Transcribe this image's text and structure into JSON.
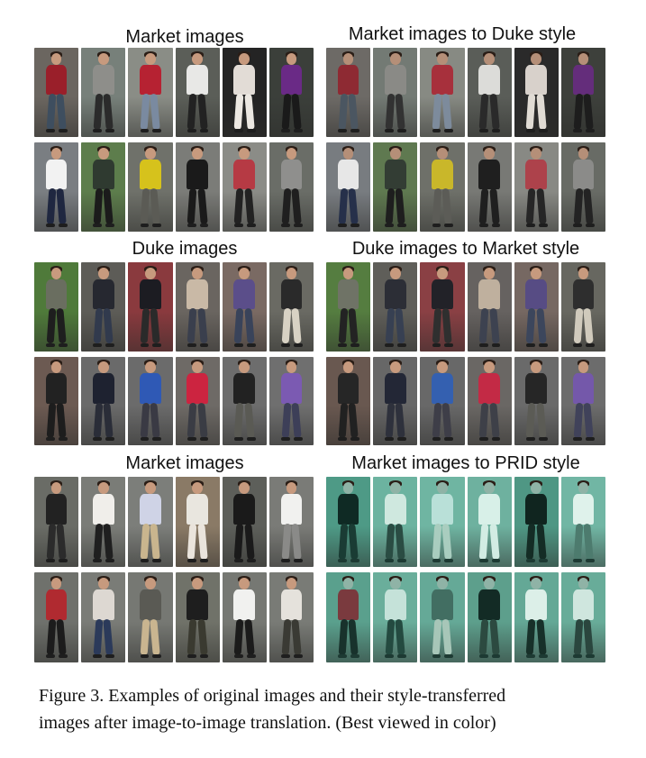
{
  "figure": {
    "panels": [
      {
        "id": "market-1",
        "title": "Market images",
        "variant": "market"
      },
      {
        "id": "market-to-duke",
        "title": "Market images to Duke style",
        "variant": "duke-style"
      },
      {
        "id": "duke",
        "title": "Duke images",
        "variant": "duke"
      },
      {
        "id": "duke-to-market",
        "title": "Duke images to Market style",
        "variant": "market-style"
      },
      {
        "id": "market-2",
        "title": "Market images",
        "variant": "market"
      },
      {
        "id": "market-to-prid",
        "title": "Market images to PRID style",
        "variant": "prid"
      }
    ],
    "caption": {
      "line1": "Figure 3. Examples of original images and their style-transferred",
      "line2": "images after image-to-image translation. (Best viewed in color)"
    }
  },
  "palettes": {
    "market-1": [
      [
        "#9a1f2a",
        "#3e4e5f",
        "#6b6660"
      ],
      [
        "#8e8e8a",
        "#2b2b2b",
        "#77807a"
      ],
      [
        "#b62232",
        "#7a8aa0",
        "#8a8d86"
      ],
      [
        "#e8e8e6",
        "#222222",
        "#5b5e58"
      ],
      [
        "#e2dcd6",
        "#ece8e2",
        "#242424"
      ],
      [
        "#6a2a86",
        "#1a1a1a",
        "#3b3f3a"
      ],
      [
        "#f2f2f2",
        "#1f2740",
        "#7a7e82"
      ],
      [
        "#2f3a30",
        "#1b1b1b",
        "#5d7d4c"
      ],
      [
        "#d6c21c",
        "#5b5b55",
        "#6f716a"
      ],
      [
        "#1a1a1a",
        "#1a1a1a",
        "#7b7c78"
      ],
      [
        "#b63a44",
        "#222222",
        "#8b8c87"
      ],
      [
        "#8f8f8d",
        "#1f1f1f",
        "#6a6d67"
      ]
    ],
    "market-to-duke": [
      [
        "#8e2a33",
        "#4b5661",
        "#6d6a66"
      ],
      [
        "#8a8a86",
        "#323232",
        "#737a74"
      ],
      [
        "#a7303c",
        "#7d8b9c",
        "#878a83"
      ],
      [
        "#dcdcd9",
        "#2a2a2a",
        "#5a5d58"
      ],
      [
        "#d8d1cb",
        "#e0dbd4",
        "#2a2a2a"
      ],
      [
        "#642d7b",
        "#1d1d1d",
        "#3d403b"
      ],
      [
        "#e7e7e7",
        "#26304a",
        "#787c80"
      ],
      [
        "#333d34",
        "#1e1e1e",
        "#5f7950"
      ],
      [
        "#c9b72a",
        "#5c5c57",
        "#6e7069"
      ],
      [
        "#1f1f1f",
        "#1f1f1f",
        "#787975"
      ],
      [
        "#ad424b",
        "#262626",
        "#888984"
      ],
      [
        "#8b8b89",
        "#232323",
        "#686b65"
      ]
    ],
    "duke": [
      [
        "#6a6e60",
        "#1e1e1e",
        "#4f7a3a"
      ],
      [
        "#262830",
        "#313a4d",
        "#5d5c57"
      ],
      [
        "#1c1c22",
        "#2a2a2a",
        "#8a3a3e"
      ],
      [
        "#c9b9a6",
        "#3a3f4d",
        "#6a6560"
      ],
      [
        "#5b4e8a",
        "#39435a",
        "#7a6a63"
      ],
      [
        "#2a2a2a",
        "#d8d2c4",
        "#6a6a63"
      ],
      [
        "#222222",
        "#1d1d1d",
        "#6c5a52"
      ],
      [
        "#1e2230",
        "#2a2d38",
        "#6a6a6a"
      ],
      [
        "#2f59b5",
        "#3a3a44",
        "#6b6b6b"
      ],
      [
        "#cc2440",
        "#3a3c44",
        "#6e6a66"
      ],
      [
        "#222222",
        "#5a5a54",
        "#6d6d6d"
      ],
      [
        "#7b5ab2",
        "#3d3f58",
        "#6f6f6f"
      ]
    ],
    "duke-to-market": [
      [
        "#6f7366",
        "#232323",
        "#557d40"
      ],
      [
        "#2c2e36",
        "#374052",
        "#5f5e59"
      ],
      [
        "#222228",
        "#2f2f2f",
        "#8a4044"
      ],
      [
        "#bfb09e",
        "#3d4250",
        "#666260"
      ],
      [
        "#574c84",
        "#3c465c",
        "#766862"
      ],
      [
        "#2e2e2e",
        "#d0cabc",
        "#676760"
      ],
      [
        "#262626",
        "#212121",
        "#695850"
      ],
      [
        "#232736",
        "#2e313c",
        "#676767"
      ],
      [
        "#3460b0",
        "#3e3e48",
        "#686868"
      ],
      [
        "#c32a45",
        "#3e4048",
        "#6a6764"
      ],
      [
        "#262626",
        "#5b5b55",
        "#6a6a6a"
      ],
      [
        "#7458aa",
        "#40425a",
        "#6c6c6c"
      ]
    ],
    "market-2": [
      [
        "#222222",
        "#2b2b2b",
        "#6a6c66"
      ],
      [
        "#f0eeea",
        "#1f1f1f",
        "#7a7c77"
      ],
      [
        "#cfd3e6",
        "#c9b58e",
        "#7c7e7a"
      ],
      [
        "#e9e6df",
        "#eae4dc",
        "#8a7a66"
      ],
      [
        "#1a1a1a",
        "#1a1a1a",
        "#5d5f5a"
      ],
      [
        "#f1f1ef",
        "#8a8a88",
        "#7a7b77"
      ],
      [
        "#b02a30",
        "#1c1c1c",
        "#6f716c"
      ],
      [
        "#ddd8d2",
        "#2b3a5a",
        "#7a7c77"
      ],
      [
        "#5a5a54",
        "#c9b590",
        "#767873"
      ],
      [
        "#1e1e1e",
        "#3a3a30",
        "#707269"
      ],
      [
        "#f1f1ef",
        "#1b1b1b",
        "#767873"
      ],
      [
        "#e5e2dc",
        "#3a3a34",
        "#797b76"
      ]
    ],
    "market-to-prid": [
      [
        "#0f2a24",
        "#1a3c34",
        "#4e9a86"
      ],
      [
        "#cfe8df",
        "#2a4c43",
        "#6cb3a0"
      ],
      [
        "#b9e0d8",
        "#a9cdbf",
        "#6fb5a2"
      ],
      [
        "#d8f0e8",
        "#d2ece3",
        "#6eb19f"
      ],
      [
        "#10251f",
        "#142c25",
        "#4f9784"
      ],
      [
        "#dff2eb",
        "#4d7b6e",
        "#71b6a4"
      ],
      [
        "#7a3a3e",
        "#18322c",
        "#5aa08d"
      ],
      [
        "#c5e2d9",
        "#244a40",
        "#6aae9b"
      ],
      [
        "#426e62",
        "#a7c6b8",
        "#65a997"
      ],
      [
        "#132b25",
        "#2c4a40",
        "#5d9f8c"
      ],
      [
        "#dcefe8",
        "#173029",
        "#64a896"
      ],
      [
        "#cfe6de",
        "#2a463e",
        "#68ac99"
      ]
    ]
  }
}
